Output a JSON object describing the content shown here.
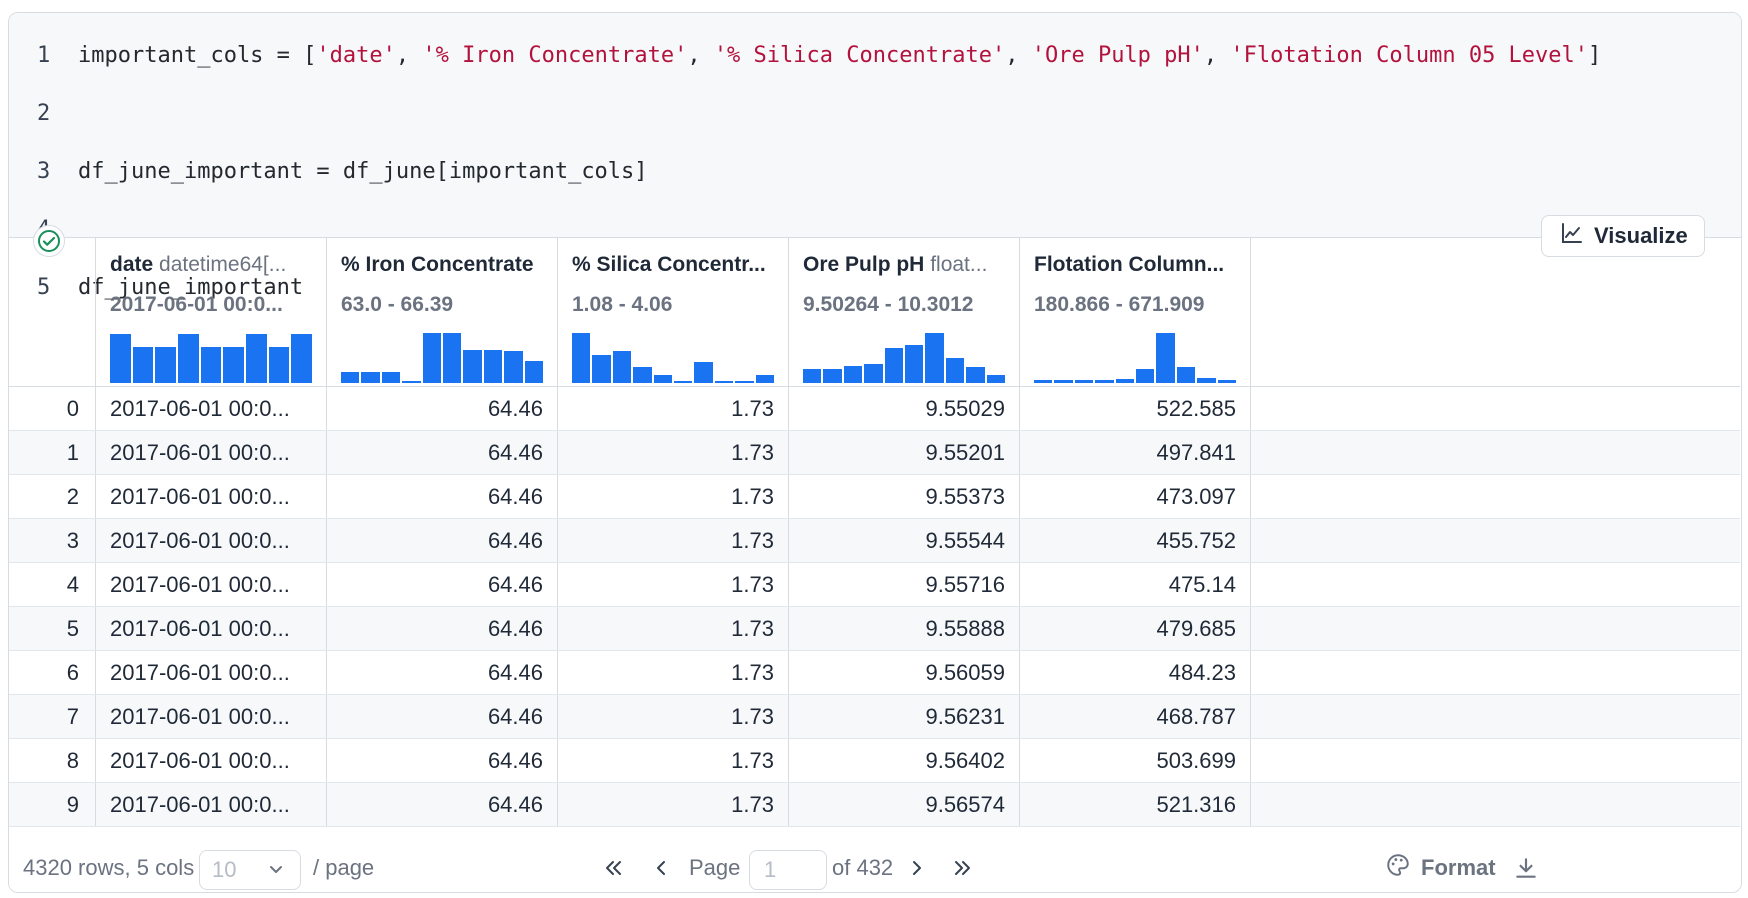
{
  "code": {
    "lines": [
      {
        "n": "1",
        "pre": "important_cols = [",
        "strings": [
          "'date'",
          "'% Iron Concentrate'",
          "'% Silica Concentrate'",
          "'Ore Pulp pH'",
          "'Flotation Column 05 Level'"
        ],
        "sep": ", ",
        "post": "]"
      },
      {
        "n": "2",
        "text": ""
      },
      {
        "n": "3",
        "text": "df_june_important = df_june[important_cols]"
      },
      {
        "n": "4",
        "text": ""
      },
      {
        "n": "5",
        "text": "df_june_important"
      }
    ]
  },
  "status": {
    "icon": "check-circle-icon",
    "color": "#1a8f5a"
  },
  "visualize": {
    "label": "Visualize",
    "icon": "line-chart-icon"
  },
  "table": {
    "columns": [
      {
        "name": "date",
        "type": "datetime64[...",
        "range": "2017-06-01 00:0...",
        "hist": [
          0.98,
          0.72,
          0.72,
          0.98,
          0.72,
          0.72,
          0.98,
          0.72,
          0.98
        ]
      },
      {
        "name": "% Iron Concentrate",
        "type": "",
        "range": "63.0 - 66.39",
        "hist": [
          0.22,
          0.22,
          0.22,
          0.03,
          1.0,
          1.0,
          0.66,
          0.66,
          0.63,
          0.44
        ]
      },
      {
        "name": "% Silica Concentr...",
        "type": "",
        "range": "1.08 - 4.06",
        "hist": [
          1.0,
          0.56,
          0.63,
          0.31,
          0.16,
          0.03,
          0.41,
          0.03,
          0.03,
          0.16
        ]
      },
      {
        "name": "Ore Pulp pH",
        "type": "float...",
        "range": "9.50264 - 10.3012",
        "hist": [
          0.28,
          0.28,
          0.34,
          0.38,
          0.69,
          0.75,
          1.0,
          0.5,
          0.31,
          0.16
        ]
      },
      {
        "name": "Flotation Column...",
        "type": "",
        "range": "180.866 - 671.909",
        "hist": [
          0.06,
          0.05,
          0.05,
          0.05,
          0.08,
          0.28,
          1.0,
          0.31,
          0.09,
          0.06
        ]
      }
    ],
    "rows": [
      [
        "0",
        "2017-06-01 00:0...",
        "64.46",
        "1.73",
        "9.55029",
        "522.585"
      ],
      [
        "1",
        "2017-06-01 00:0...",
        "64.46",
        "1.73",
        "9.55201",
        "497.841"
      ],
      [
        "2",
        "2017-06-01 00:0...",
        "64.46",
        "1.73",
        "9.55373",
        "473.097"
      ],
      [
        "3",
        "2017-06-01 00:0...",
        "64.46",
        "1.73",
        "9.55544",
        "455.752"
      ],
      [
        "4",
        "2017-06-01 00:0...",
        "64.46",
        "1.73",
        "9.55716",
        "475.14"
      ],
      [
        "5",
        "2017-06-01 00:0...",
        "64.46",
        "1.73",
        "9.55888",
        "479.685"
      ],
      [
        "6",
        "2017-06-01 00:0...",
        "64.46",
        "1.73",
        "9.56059",
        "484.23"
      ],
      [
        "7",
        "2017-06-01 00:0...",
        "64.46",
        "1.73",
        "9.56231",
        "468.787"
      ],
      [
        "8",
        "2017-06-01 00:0...",
        "64.46",
        "1.73",
        "9.56402",
        "503.699"
      ],
      [
        "9",
        "2017-06-01 00:0...",
        "64.46",
        "1.73",
        "9.56574",
        "521.316"
      ]
    ]
  },
  "footer": {
    "summary": "4320 rows, 5 cols",
    "page_size": "10",
    "per_page": "/ page",
    "page_label": "Page",
    "page_value": "1",
    "of_label": "of 432",
    "format_label": "Format",
    "icons": [
      "first-page-icon",
      "prev-page-icon",
      "next-page-icon",
      "last-page-icon",
      "palette-icon",
      "download-icon"
    ]
  },
  "colors": {
    "accent": "#1a73f0",
    "string": "#b3123d",
    "border": "#d7dce3",
    "zebra": "#f6f8fa"
  }
}
